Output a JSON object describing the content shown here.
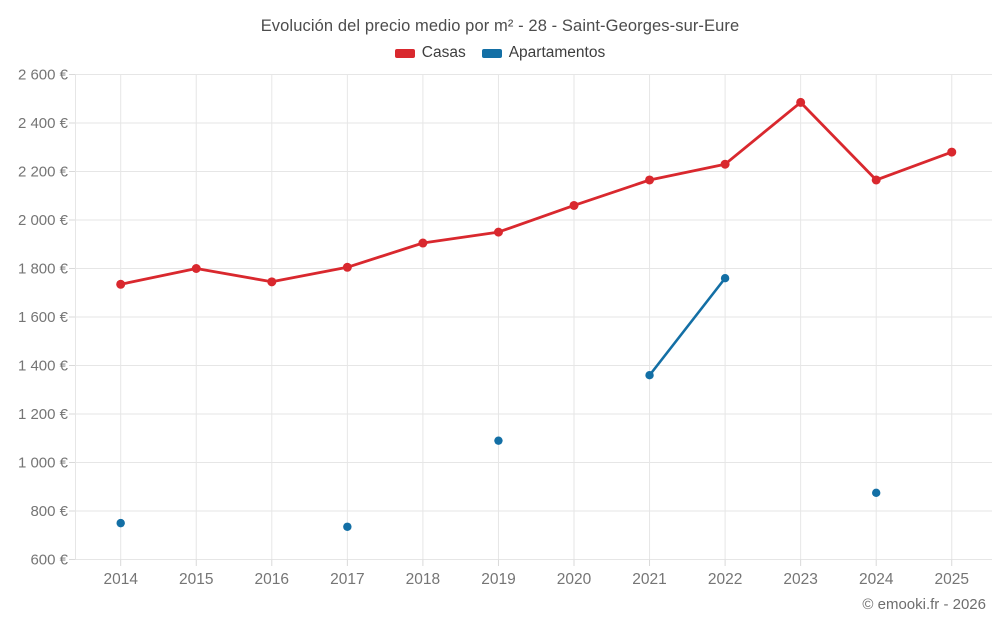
{
  "title": "Evolución del precio medio por m² - 28 - Saint-Georges-sur-Eure",
  "legend": [
    {
      "label": "Casas",
      "color": "#d9282e"
    },
    {
      "label": "Apartamentos",
      "color": "#136fa5"
    }
  ],
  "attribution": "© emooki.fr - 2026",
  "chart_data": {
    "type": "line",
    "title": "Evolución del precio medio por m² - 28 - Saint-Georges-sur-Eure",
    "x": [
      2014,
      2015,
      2016,
      2017,
      2018,
      2019,
      2020,
      2021,
      2022,
      2023,
      2024,
      2025
    ],
    "x_labels": [
      "2014",
      "2015",
      "2016",
      "2017",
      "2018",
      "2019",
      "2020",
      "2021",
      "2022",
      "2023",
      "2024",
      "2025"
    ],
    "series": [
      {
        "name": "Casas",
        "color": "#d9282e",
        "values": [
          1735,
          1800,
          1745,
          1805,
          1905,
          1950,
          2060,
          2165,
          2230,
          2485,
          2165,
          2280
        ]
      },
      {
        "name": "Apartamentos",
        "color": "#136fa5",
        "values": [
          750,
          null,
          null,
          735,
          null,
          1090,
          null,
          1360,
          1760,
          null,
          875,
          null
        ]
      }
    ],
    "ylim": [
      600,
      2600
    ],
    "ytick_step": 200,
    "ytick_values": [
      600,
      800,
      1000,
      1200,
      1400,
      1600,
      1800,
      2000,
      2200,
      2400,
      2600
    ],
    "ytick_labels": [
      "600 €",
      "800 €",
      "1 000 €",
      "1 200 €",
      "1 400 €",
      "1 600 €",
      "1 800 €",
      "2 000 €",
      "2 200 €",
      "2 400 €",
      "2 600 €"
    ],
    "grid": true,
    "legend_position": "top",
    "ylabel": "",
    "xlabel": ""
  }
}
